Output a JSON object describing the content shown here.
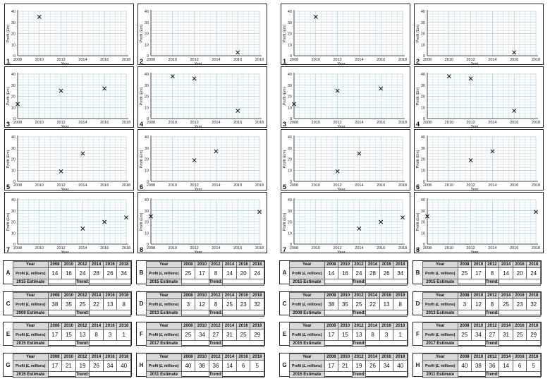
{
  "axis": {
    "xlabel": "Year",
    "ylabel": "Profit (£m)",
    "xticks": [
      "2008",
      "2010",
      "2012",
      "2014",
      "2016",
      "2018"
    ],
    "yticks": [
      "0",
      "10",
      "20",
      "30",
      "40"
    ]
  },
  "chart_data": [
    {
      "type": "scatter",
      "number": "1",
      "x": [
        2010
      ],
      "y": [
        35
      ],
      "xlim": [
        2008,
        2018
      ],
      "ylim": [
        0,
        40
      ],
      "xlabel": "Year",
      "ylabel": "Profit (£m)",
      "grid": true
    },
    {
      "type": "scatter",
      "number": "2",
      "x": [
        2016
      ],
      "y": [
        3
      ],
      "xlim": [
        2008,
        2018
      ],
      "ylim": [
        0,
        40
      ],
      "xlabel": "Year",
      "ylabel": "Profit (£m)",
      "grid": true
    },
    {
      "type": "scatter",
      "number": "3",
      "x": [
        2008,
        2012,
        2016
      ],
      "y": [
        13,
        25,
        27
      ],
      "xlim": [
        2008,
        2018
      ],
      "ylim": [
        0,
        40
      ],
      "xlabel": "Year",
      "ylabel": "Profit (£m)",
      "grid": true
    },
    {
      "type": "scatter",
      "number": "4",
      "x": [
        2010,
        2012,
        2016
      ],
      "y": [
        38,
        36,
        7
      ],
      "xlim": [
        2008,
        2018
      ],
      "ylim": [
        0,
        40
      ],
      "xlabel": "Year",
      "ylabel": "Profit (£m)",
      "grid": true
    },
    {
      "type": "scatter",
      "number": "5",
      "x": [
        2012,
        2014
      ],
      "y": [
        9,
        25
      ],
      "xlim": [
        2008,
        2018
      ],
      "ylim": [
        0,
        40
      ],
      "xlabel": "Year",
      "ylabel": "Profit (£m)",
      "grid": true
    },
    {
      "type": "scatter",
      "number": "6",
      "x": [
        2012,
        2014
      ],
      "y": [
        19,
        27
      ],
      "xlim": [
        2008,
        2018
      ],
      "ylim": [
        0,
        40
      ],
      "xlabel": "Year",
      "ylabel": "Profit (£m)",
      "grid": true
    },
    {
      "type": "scatter",
      "number": "7",
      "x": [
        2014,
        2016,
        2018
      ],
      "y": [
        14,
        20,
        24
      ],
      "xlim": [
        2008,
        2018
      ],
      "ylim": [
        0,
        40
      ],
      "xlabel": "Year",
      "ylabel": "Profit (£m)",
      "grid": true
    },
    {
      "type": "scatter",
      "number": "8",
      "x": [
        2008,
        2018
      ],
      "y": [
        25,
        29
      ],
      "xlim": [
        2008,
        2018
      ],
      "ylim": [
        0,
        40
      ],
      "xlabel": "Year",
      "ylabel": "Profit (£m)",
      "grid": true
    }
  ],
  "tables": [
    {
      "letter": "A",
      "years": [
        "2008",
        "2010",
        "2012",
        "2014",
        "2016",
        "2018"
      ],
      "values": [
        "14",
        "16",
        "24",
        "28",
        "26",
        "34"
      ],
      "estimate": "2015 Estimate"
    },
    {
      "letter": "B",
      "years": [
        "2008",
        "2010",
        "2012",
        "2014",
        "2016",
        "2018"
      ],
      "values": [
        "25",
        "17",
        "8",
        "14",
        "20",
        "24"
      ],
      "estimate": "2015 Estimate"
    },
    {
      "letter": "C",
      "years": [
        "2008",
        "2010",
        "2012",
        "2014",
        "2016",
        "2018"
      ],
      "values": [
        "38",
        "35",
        "25",
        "22",
        "13",
        "8"
      ],
      "estimate": "2009 Estimate"
    },
    {
      "letter": "D",
      "years": [
        "2008",
        "2010",
        "2012",
        "2014",
        "2016",
        "2018"
      ],
      "values": [
        "3",
        "12",
        "8",
        "25",
        "23",
        "32"
      ],
      "estimate": "2013 Estimate"
    },
    {
      "letter": "E",
      "years": [
        "2008",
        "2010",
        "2012",
        "2014",
        "2016",
        "2018"
      ],
      "values": [
        "17",
        "15",
        "13",
        "8",
        "3",
        "1"
      ],
      "estimate": "2015 Estimate"
    },
    {
      "letter": "F",
      "years": [
        "2008",
        "2010",
        "2012",
        "2014",
        "2016",
        "2018"
      ],
      "values": [
        "25",
        "34",
        "27",
        "31",
        "25",
        "29"
      ],
      "estimate": "2017 Estimate"
    },
    {
      "letter": "G",
      "years": [
        "2008",
        "2010",
        "2012",
        "2014",
        "2016",
        "2018"
      ],
      "values": [
        "17",
        "21",
        "19",
        "26",
        "34",
        "40"
      ],
      "estimate": "2015 Estimate"
    },
    {
      "letter": "H",
      "years": [
        "2008",
        "2010",
        "2012",
        "2014",
        "2016",
        "2018"
      ],
      "values": [
        "40",
        "38",
        "36",
        "14",
        "6",
        "5"
      ],
      "estimate": "2011 Estimate"
    }
  ],
  "table_labels": {
    "year": "Year",
    "profit": "Profit (£, millions)",
    "trend": "Trend:"
  }
}
